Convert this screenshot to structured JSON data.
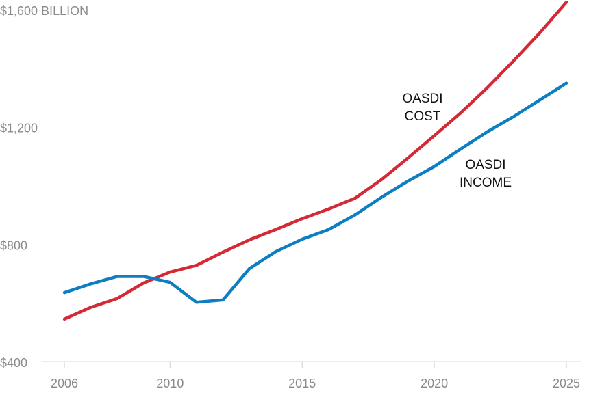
{
  "chart_data": {
    "type": "line",
    "title": "",
    "xlabel": "",
    "ylabel": "",
    "x": [
      2006,
      2007,
      2008,
      2009,
      2010,
      2011,
      2012,
      2013,
      2014,
      2015,
      2016,
      2017,
      2018,
      2019,
      2020,
      2021,
      2022,
      2023,
      2024,
      2025
    ],
    "xlim": [
      2006,
      2025
    ],
    "ylim": [
      400,
      1600
    ],
    "x_ticks": [
      2006,
      2010,
      2015,
      2020,
      2025
    ],
    "x_tick_labels": [
      "2006",
      "2010",
      "2015",
      "2020",
      "2025"
    ],
    "y_ticks": [
      400,
      800,
      1200,
      1600
    ],
    "y_tick_labels": [
      "$400",
      "$800",
      "$1,200",
      "$1,600 BILLION"
    ],
    "grid": false,
    "legend": "none",
    "series": [
      {
        "name": "OASDI COST",
        "label_lines": [
          "OASDI",
          "COST"
        ],
        "color": "#d42a36",
        "values": [
          545,
          585,
          615,
          668,
          705,
          728,
          773,
          815,
          850,
          887,
          920,
          957,
          1020,
          1094,
          1170,
          1248,
          1333,
          1425,
          1521,
          1625
        ]
      },
      {
        "name": "OASDI INCOME",
        "label_lines": [
          "OASDI",
          "INCOME"
        ],
        "color": "#0d7ec1",
        "values": [
          635,
          665,
          690,
          690,
          670,
          602,
          610,
          717,
          775,
          817,
          850,
          900,
          960,
          1015,
          1065,
          1125,
          1183,
          1235,
          1292,
          1349
        ]
      }
    ]
  }
}
